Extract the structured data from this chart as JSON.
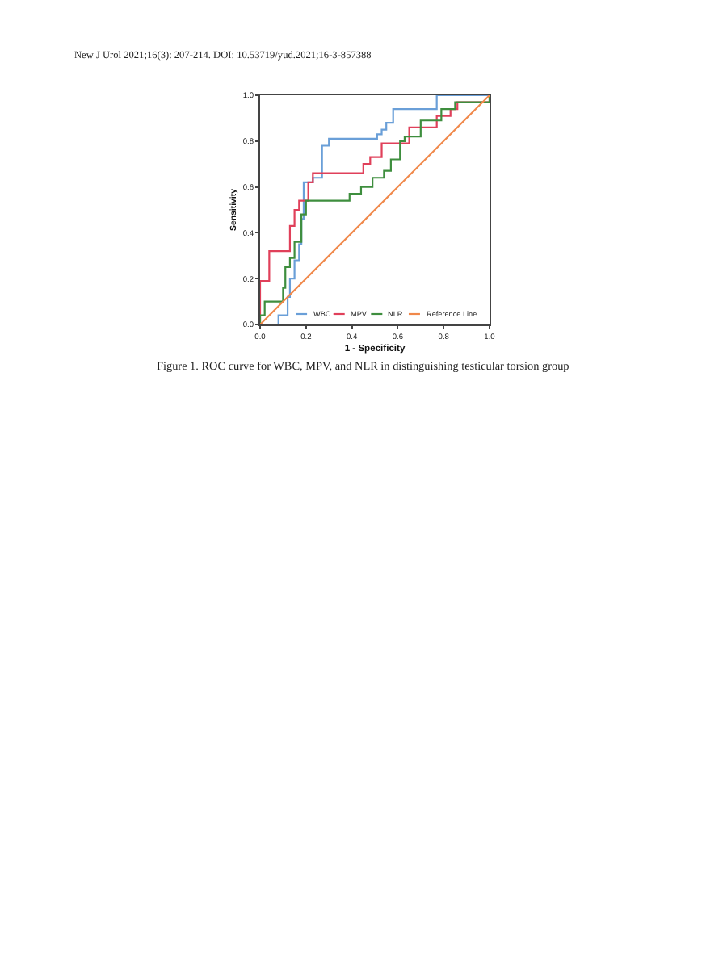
{
  "chart_data": {
    "type": "line",
    "title": "Figure 1. ROC curve for WBC, MPV, and NLR in distinguishing testicular torsion group",
    "annotations": [
      "New J Urol 2021;16(3): 207-214. DOI: 10.53719/yud.2021;16-3-857388"
    ],
    "xlabel": "1 - Specificity",
    "ylabel": "Sensitivity",
    "xlim": [
      0,
      1
    ],
    "ylim": [
      0,
      1
    ],
    "xticks": [
      {
        "value": 0,
        "label": "0.0"
      },
      0.2,
      0.4,
      0.6,
      0.8,
      {
        "value": 1,
        "label": "1.0"
      }
    ],
    "yticks": [
      {
        "value": 0,
        "label": "0.0"
      },
      0.2,
      0.4,
      0.6,
      0.8,
      {
        "value": 1,
        "label": "1.0"
      }
    ],
    "grid": false,
    "legend": "bottom right",
    "marker": "none",
    "line_style": "solid",
    "series": [
      {
        "name": "WBC",
        "color": "#6a9fd8",
        "x": [
          0,
          0.08,
          0.08,
          0.12,
          0.12,
          0.13,
          0.13,
          0.15,
          0.15,
          0.17,
          0.17,
          0.18,
          0.18,
          0.19,
          0.19,
          0.23,
          0.23,
          0.27,
          0.27,
          0.3,
          0.3,
          0.51,
          0.51,
          0.53,
          0.53,
          0.55,
          0.55,
          0.58,
          0.58,
          0.77,
          0.77,
          1.0
        ],
        "values": [
          0,
          0,
          0.04,
          0.04,
          0.12,
          0.12,
          0.2,
          0.2,
          0.28,
          0.28,
          0.35,
          0.35,
          0.46,
          0.46,
          0.62,
          0.62,
          0.64,
          0.64,
          0.78,
          0.78,
          0.81,
          0.81,
          0.83,
          0.83,
          0.85,
          0.85,
          0.88,
          0.88,
          0.94,
          0.94,
          1.0,
          1.0
        ]
      },
      {
        "name": "MPV",
        "color": "#e0405a",
        "x": [
          0,
          0,
          0.04,
          0.04,
          0.13,
          0.13,
          0.15,
          0.15,
          0.17,
          0.17,
          0.21,
          0.21,
          0.23,
          0.23,
          0.45,
          0.45,
          0.48,
          0.48,
          0.53,
          0.53,
          0.65,
          0.65,
          0.77,
          0.77,
          0.83,
          0.83,
          0.86,
          0.86,
          1.0,
          1.0
        ],
        "values": [
          0,
          0.19,
          0.19,
          0.32,
          0.32,
          0.43,
          0.43,
          0.5,
          0.5,
          0.54,
          0.54,
          0.62,
          0.62,
          0.66,
          0.66,
          0.7,
          0.7,
          0.73,
          0.73,
          0.79,
          0.79,
          0.86,
          0.86,
          0.91,
          0.91,
          0.94,
          0.94,
          0.97,
          0.97,
          1.0
        ]
      },
      {
        "name": "NLR",
        "color": "#3e8e3e",
        "x": [
          0,
          0,
          0.02,
          0.02,
          0.1,
          0.1,
          0.11,
          0.11,
          0.13,
          0.13,
          0.15,
          0.15,
          0.18,
          0.18,
          0.2,
          0.2,
          0.39,
          0.39,
          0.44,
          0.44,
          0.49,
          0.49,
          0.54,
          0.54,
          0.57,
          0.57,
          0.61,
          0.61,
          0.63,
          0.63,
          0.7,
          0.7,
          0.79,
          0.79,
          0.85,
          0.85,
          1.0,
          1.0
        ],
        "values": [
          0,
          0.04,
          0.04,
          0.1,
          0.1,
          0.16,
          0.16,
          0.25,
          0.25,
          0.29,
          0.29,
          0.36,
          0.36,
          0.48,
          0.48,
          0.54,
          0.54,
          0.57,
          0.57,
          0.6,
          0.6,
          0.64,
          0.64,
          0.67,
          0.67,
          0.72,
          0.72,
          0.8,
          0.8,
          0.82,
          0.82,
          0.89,
          0.89,
          0.94,
          0.94,
          0.97,
          0.97,
          1.0
        ]
      },
      {
        "name": "Reference Line",
        "color": "#f0884a",
        "x": [
          0,
          1
        ],
        "values": [
          0,
          1
        ]
      }
    ]
  }
}
